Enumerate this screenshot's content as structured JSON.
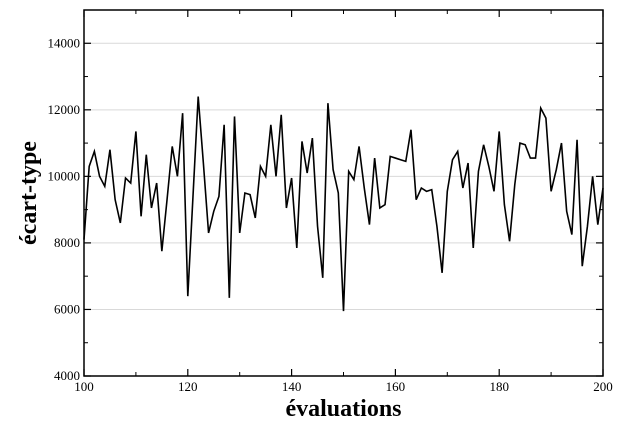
{
  "chart_data": {
    "type": "line",
    "xlabel": "évaluations",
    "ylabel": "écart-type",
    "xlim": [
      100,
      200
    ],
    "ylim": [
      4000,
      15000
    ],
    "xticks": [
      100,
      120,
      140,
      160,
      180,
      200
    ],
    "yticks": [
      4000,
      6000,
      8000,
      10000,
      12000,
      14000
    ],
    "grid": "horizontal",
    "line_color": "#000000",
    "series": [
      {
        "x": [
          100,
          101,
          102,
          103,
          104,
          105,
          106,
          107,
          108,
          109,
          110,
          111,
          112,
          113,
          114,
          115,
          116,
          117,
          118,
          119,
          120,
          121,
          122,
          123,
          124,
          125,
          126,
          127,
          128,
          129,
          130,
          131,
          132,
          133,
          134,
          135,
          136,
          137,
          138,
          139,
          140,
          141,
          142,
          143,
          144,
          145,
          146,
          147,
          148,
          149,
          150,
          151,
          152,
          153,
          154,
          155,
          156,
          157,
          158,
          159,
          160,
          161,
          162,
          163,
          164,
          165,
          166,
          167,
          168,
          169,
          170,
          171,
          172,
          173,
          174,
          175,
          176,
          177,
          178,
          179,
          180,
          181,
          182,
          183,
          184,
          185,
          186,
          187,
          188,
          189,
          190,
          191,
          192,
          193,
          194,
          195,
          196,
          197,
          198,
          199,
          200
        ],
        "y": [
          8100,
          10300,
          10750,
          10000,
          9700,
          10800,
          9300,
          8600,
          9950,
          9800,
          11350,
          8800,
          10650,
          9050,
          9800,
          7750,
          9300,
          10900,
          10000,
          11900,
          6400,
          9400,
          12400,
          10400,
          8300,
          8950,
          9400,
          11550,
          6350,
          11800,
          8300,
          9500,
          9450,
          8750,
          10300,
          10000,
          11550,
          10000,
          11850,
          9050,
          9950,
          7850,
          11050,
          10100,
          11150,
          8500,
          6950,
          12200,
          10200,
          9500,
          5950,
          10150,
          9900,
          10900,
          9650,
          8550,
          10550,
          9050,
          9150,
          10600,
          10550,
          10500,
          10450,
          11400,
          9300,
          9650,
          9550,
          9600,
          8500,
          7100,
          9550,
          10500,
          10750,
          9650,
          10400,
          7850,
          10150,
          10950,
          10300,
          9550,
          11350,
          9150,
          8050,
          9750,
          11000,
          10950,
          10550,
          10550,
          12050,
          11750,
          9550,
          10200,
          11000,
          8950,
          8250,
          11100,
          7300,
          8500,
          10000,
          8550,
          9650
        ]
      }
    ]
  }
}
